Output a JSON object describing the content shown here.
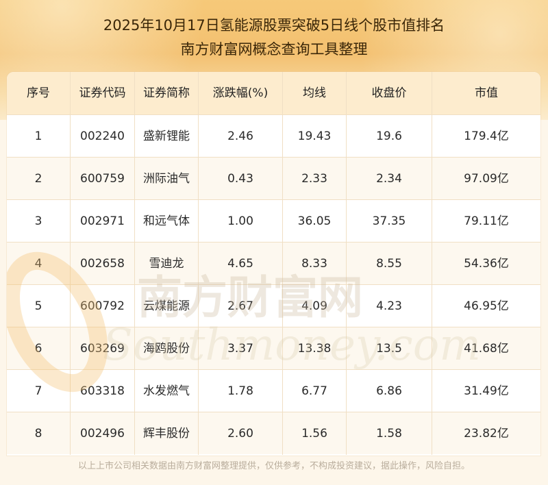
{
  "header": {
    "title_line1": "2025年10月17日氢能源股票突破5日线个股市值排名",
    "title_line2": "南方财富网概念查询工具整理"
  },
  "table": {
    "columns": [
      "序号",
      "证券代码",
      "证券简称",
      "涨跌幅(%)",
      "均线",
      "收盘价",
      "市值"
    ],
    "rows": [
      [
        "1",
        "002240",
        "盛新锂能",
        "2.46",
        "19.43",
        "19.6",
        "179.4亿"
      ],
      [
        "2",
        "600759",
        "洲际油气",
        "0.43",
        "2.33",
        "2.34",
        "97.09亿"
      ],
      [
        "3",
        "002971",
        "和远气体",
        "1.00",
        "36.05",
        "37.35",
        "79.11亿"
      ],
      [
        "4",
        "002658",
        "雪迪龙",
        "4.65",
        "8.33",
        "8.55",
        "54.36亿"
      ],
      [
        "5",
        "600792",
        "云煤能源",
        "2.67",
        "4.09",
        "4.23",
        "46.95亿"
      ],
      [
        "6",
        "603269",
        "海鸥股份",
        "3.37",
        "13.38",
        "13.5",
        "41.68亿"
      ],
      [
        "7",
        "603318",
        "水发燃气",
        "1.78",
        "6.77",
        "6.86",
        "31.49亿"
      ],
      [
        "8",
        "002496",
        "辉丰股份",
        "2.60",
        "1.56",
        "1.58",
        "23.82亿"
      ]
    ]
  },
  "watermark": {
    "text_cn": "南方财富网",
    "text_en": "Southmoney.com"
  },
  "footer": {
    "disclaimer": "以上上市公司相关数据由南方财富网整理提供，仅供参考，不构成投资建议，据此操作，风险自担。"
  },
  "colors": {
    "header_gold": "#f3c070",
    "table_head": "#fdecce",
    "row_alt": "#fdf8ef",
    "grid_line": "#f0dfc4",
    "footer_text": "#b9ad9c"
  }
}
